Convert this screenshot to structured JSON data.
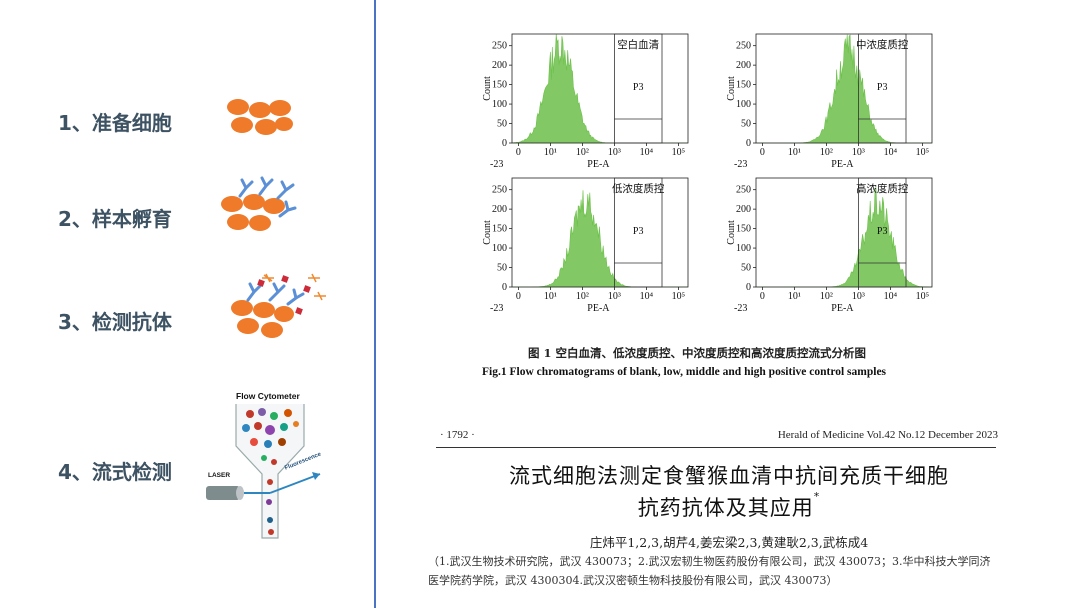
{
  "steps": [
    {
      "label": "1、准备细胞"
    },
    {
      "label": "2、样本孵育"
    },
    {
      "label": "3、检测抗体"
    },
    {
      "label": "4、流式检测"
    }
  ],
  "cytometer": {
    "title": "Flow Cytometer",
    "laser": "LASER",
    "fluorescence": "Fluorescence"
  },
  "colors": {
    "cell": "#ee7a2a",
    "antibody": "#5b8fd6",
    "histogram": "#6cc04a",
    "divider": "#4a73c4"
  },
  "chart_data": [
    {
      "type": "area",
      "title": "空白血清",
      "xlabel": "PE-A",
      "ylabel": "Count",
      "gate": "P3",
      "yticks": [
        "0",
        "50",
        "100",
        "150",
        "200",
        "250"
      ],
      "xticks": [
        "0",
        "10¹",
        "10²",
        "10³",
        "10⁴",
        "10⁵"
      ],
      "xmin_label": "-23",
      "ylim": [
        0,
        280
      ],
      "peak_log": 1.3,
      "peak_count": 265
    },
    {
      "type": "area",
      "title": "中浓度质控",
      "xlabel": "PE-A",
      "ylabel": "Count",
      "gate": "P3",
      "yticks": [
        "0",
        "50",
        "100",
        "150",
        "200",
        "250"
      ],
      "xticks": [
        "0",
        "10¹",
        "10²",
        "10³",
        "10⁴",
        "10⁵"
      ],
      "xmin_label": "-23",
      "ylim": [
        0,
        280
      ],
      "peak_log": 2.7,
      "peak_count": 250
    },
    {
      "type": "area",
      "title": "低浓度质控",
      "xlabel": "PE-A",
      "ylabel": "Count",
      "gate": "P3",
      "yticks": [
        "0",
        "50",
        "100",
        "150",
        "200",
        "250"
      ],
      "xticks": [
        "0",
        "10¹",
        "10²",
        "10³",
        "10⁴",
        "10⁵"
      ],
      "xmin_label": "-23",
      "ylim": [
        0,
        280
      ],
      "peak_log": 2.1,
      "peak_count": 235
    },
    {
      "type": "area",
      "title": "高浓度质控",
      "xlabel": "PE-A",
      "ylabel": "Count",
      "gate": "P3",
      "yticks": [
        "0",
        "50",
        "100",
        "150",
        "200",
        "250"
      ],
      "xticks": [
        "0",
        "10¹",
        "10²",
        "10³",
        "10⁴",
        "10⁵"
      ],
      "xmin_label": "-23",
      "ylim": [
        0,
        280
      ],
      "peak_log": 3.6,
      "peak_count": 225
    }
  ],
  "figure": {
    "caption_cn": "图 1    空白血清、低浓度质控、中浓度质控和高浓度质控流式分析图",
    "caption_en": "Fig.1    Flow chromatograms of blank, low, middle and high positive control samples"
  },
  "paper": {
    "page": "· 1792 ·",
    "journal": "Herald of Medicine Vol.42 No.12 December 2023",
    "title_line1": "流式细胞法测定食蟹猴血清中抗间充质干细胞",
    "title_line2": "抗药抗体及其应用",
    "title_mark": "*",
    "authors": "庄炜平1,2,3,胡芹4,姜宏梁2,3,黄建耿2,3,武栋成4",
    "affil_line1": "（1.武汉生物技术研究院，武汉    430073；2.武汉宏韧生物医药股份有限公司，武汉    430073；3.华中科技大学同济",
    "affil_line2": "医学院药学院，武汉    4300304.武汉汉密顿生物科技股份有限公司，武汉    430073）"
  }
}
